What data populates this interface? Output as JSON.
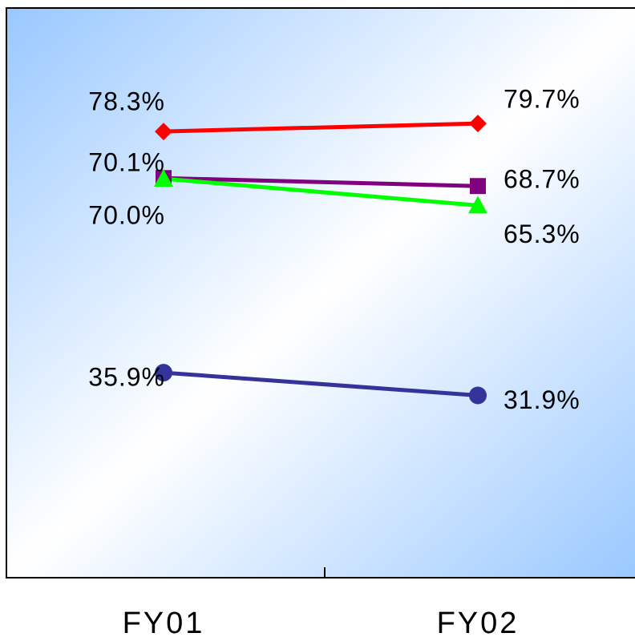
{
  "chart_data": {
    "type": "line",
    "categories": [
      "FY01",
      "FY02"
    ],
    "series": [
      {
        "color": "#ff0000",
        "marker": "diamond",
        "values": [
          78.3,
          79.7
        ],
        "value_labels": [
          "78.3%",
          "79.7%"
        ]
      },
      {
        "color": "#800080",
        "marker": "square",
        "values": [
          70.1,
          68.7
        ],
        "value_labels": [
          "70.1%",
          "68.7%"
        ]
      },
      {
        "color": "#00ff00",
        "marker": "triangle",
        "values": [
          70.0,
          65.3
        ],
        "value_labels": [
          "70.0%",
          "65.3%"
        ]
      },
      {
        "color": "#333399",
        "marker": "circle",
        "values": [
          35.9,
          31.9
        ],
        "value_labels": [
          "35.9%",
          "31.9%"
        ]
      }
    ],
    "ylim": [
      0,
      100
    ],
    "grid": false
  }
}
